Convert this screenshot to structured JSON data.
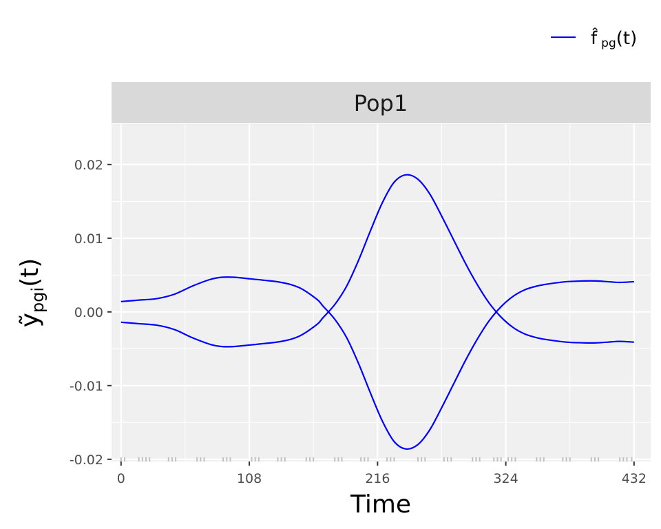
{
  "chart_data": {
    "type": "line",
    "panel_title": "Pop1",
    "xlabel": "Time",
    "ylabel": {
      "main": "ỹ",
      "subscript": "pgi",
      "argument": "(t)"
    },
    "legend": {
      "position": "top-right",
      "entries": [
        {
          "main": "f̂",
          "subscript": "pg",
          "argument": "(t)",
          "color": "#0000ff"
        }
      ]
    },
    "xlim": [
      -8,
      446
    ],
    "ylim": [
      -0.0203,
      0.0255
    ],
    "x_ticks": [
      0,
      108,
      216,
      324,
      432
    ],
    "x_tick_labels": [
      "0",
      "108",
      "216",
      "324",
      "432"
    ],
    "y_ticks": [
      -0.02,
      -0.01,
      0.0,
      0.01,
      0.02
    ],
    "y_tick_labels": [
      "-0.02",
      "-0.01",
      "0.00",
      "0.01",
      "0.02"
    ],
    "grid": true,
    "colors": {
      "line": "#0000ff",
      "panel_background": "#f0f0f0",
      "strip_background": "#d9d9d9",
      "grid": "#ffffff",
      "rug": "#bfbfbf"
    },
    "series": [
      {
        "legend": "f̂ pg(t)",
        "x": [
          0,
          15,
          30,
          45,
          60,
          75,
          85,
          95,
          108,
          120,
          135,
          150,
          165,
          170,
          180,
          190,
          200,
          210,
          220,
          230,
          240,
          250,
          260,
          270,
          280,
          290,
          300,
          310,
          320,
          330,
          340,
          350,
          360,
          375,
          390,
          400,
          410,
          420,
          432
        ],
        "y": [
          0.0014,
          0.0016,
          0.0018,
          0.0024,
          0.0035,
          0.0044,
          0.0047,
          0.0047,
          0.0045,
          0.0043,
          0.004,
          0.0033,
          0.0017,
          0.0008,
          -0.001,
          -0.0035,
          -0.007,
          -0.011,
          -0.0148,
          -0.0176,
          -0.0186,
          -0.018,
          -0.016,
          -0.013,
          -0.0098,
          -0.0066,
          -0.0037,
          -0.0012,
          0.0007,
          0.0021,
          0.003,
          0.0035,
          0.0038,
          0.0041,
          0.0042,
          0.0042,
          0.0041,
          0.004,
          0.0041
        ]
      },
      {
        "legend": "",
        "x": [
          0,
          15,
          30,
          45,
          60,
          75,
          85,
          95,
          108,
          120,
          135,
          150,
          165,
          170,
          180,
          190,
          200,
          210,
          220,
          230,
          240,
          250,
          260,
          270,
          280,
          290,
          300,
          310,
          320,
          330,
          340,
          350,
          360,
          375,
          390,
          400,
          410,
          420,
          432
        ],
        "y": [
          -0.0014,
          -0.0016,
          -0.0018,
          -0.0024,
          -0.0035,
          -0.0044,
          -0.0047,
          -0.0047,
          -0.0045,
          -0.0043,
          -0.004,
          -0.0033,
          -0.0017,
          -0.0008,
          0.001,
          0.0035,
          0.007,
          0.011,
          0.0148,
          0.0176,
          0.0186,
          0.018,
          0.016,
          0.013,
          0.0098,
          0.0066,
          0.0037,
          0.0012,
          -0.0007,
          -0.0021,
          -0.003,
          -0.0035,
          -0.0038,
          -0.0041,
          -0.0042,
          -0.0042,
          -0.0041,
          -0.004,
          -0.0041
        ]
      }
    ],
    "rug_x": [
      0,
      3,
      15,
      18,
      21,
      24,
      40,
      43,
      46,
      64,
      67,
      70,
      86,
      89,
      92,
      110,
      113,
      116,
      132,
      135,
      138,
      156,
      159,
      162,
      180,
      183,
      186,
      202,
      205,
      208,
      224,
      227,
      230,
      250,
      253,
      256,
      272,
      275,
      278,
      296,
      299,
      302,
      314,
      317,
      320,
      326,
      329,
      332,
      350,
      353,
      356,
      372,
      375,
      378,
      396,
      399,
      402,
      420,
      423,
      426,
      430
    ]
  }
}
